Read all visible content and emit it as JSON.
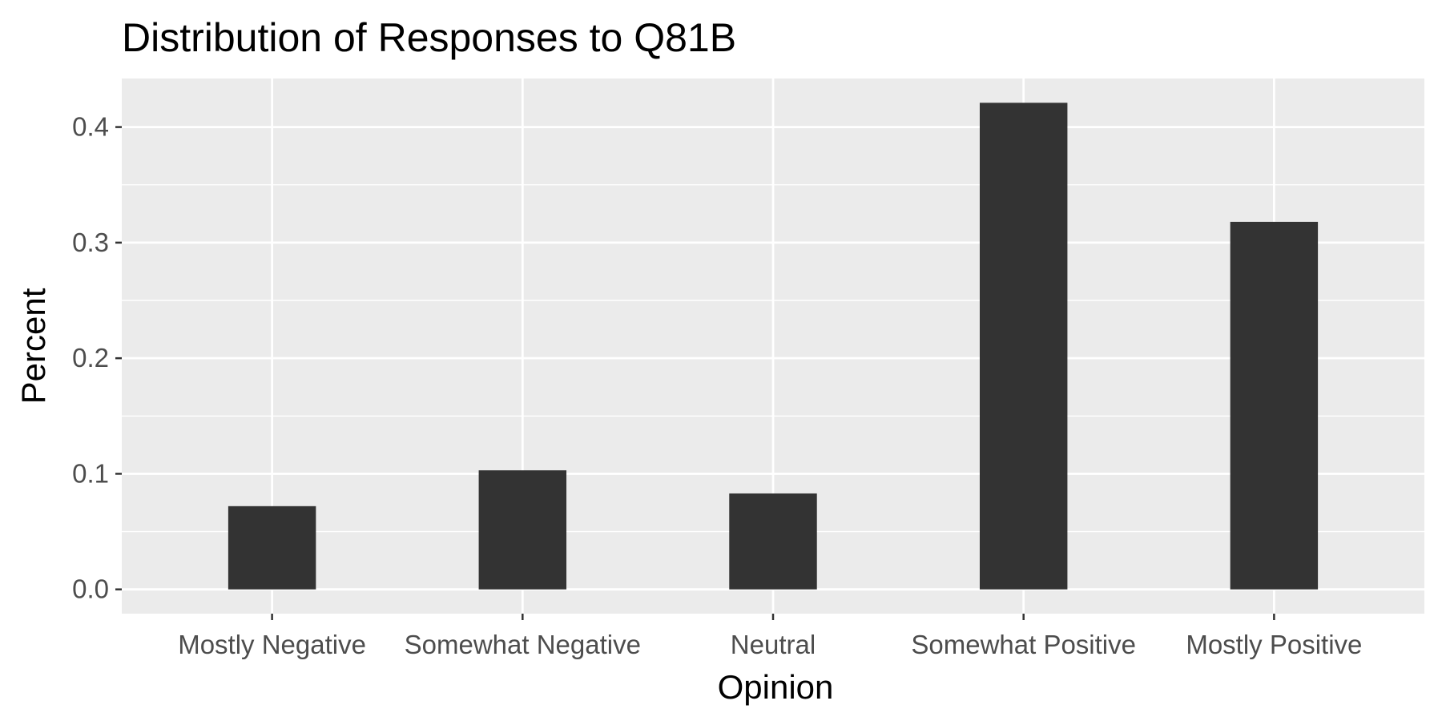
{
  "chart_data": {
    "type": "bar",
    "title": "Distribution of Responses to Q81B",
    "xlabel": "Opinion",
    "ylabel": "Percent",
    "categories": [
      "Mostly Negative",
      "Somewhat Negative",
      "Neutral",
      "Somewhat Positive",
      "Mostly Positive"
    ],
    "values": [
      0.072,
      0.103,
      0.083,
      0.421,
      0.318
    ],
    "ylim": [
      -0.021,
      0.442
    ],
    "yticks": [
      0.0,
      0.1,
      0.2,
      0.3,
      0.4
    ],
    "ytick_labels": [
      "0.0",
      "0.1",
      "0.2",
      "0.3",
      "0.4"
    ],
    "grid": true,
    "legend": "none",
    "colors": {
      "bar": "#333333",
      "panel": "#ebebeb",
      "grid": "#ffffff",
      "tick_text": "#4d4d4d",
      "title_text": "#000000"
    }
  }
}
